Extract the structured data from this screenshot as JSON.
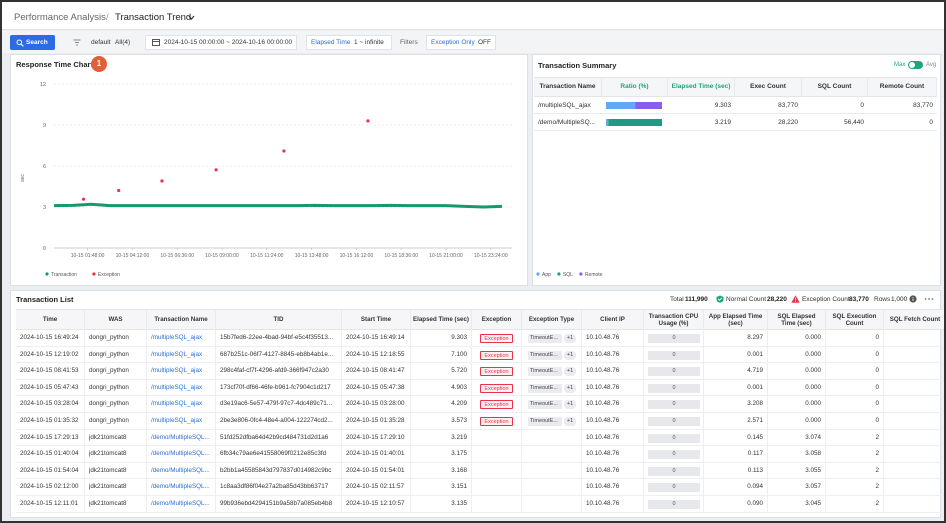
{
  "header": {
    "breadcrumb": "Performance Analysis",
    "separator": "/",
    "title": "Transaction Trend"
  },
  "toolbar": {
    "search": "Search",
    "filter_label": "default",
    "filter_value": "All(4)",
    "date_range": "2024-10-15 00:00:00 ~ 2024-10-16 00:00:00",
    "elapsed_label": "Elapsed Time",
    "elapsed_value": "1 ~ infinite",
    "filters": "Filters",
    "exception_label": "Exception Only",
    "exception_value": "OFF"
  },
  "chart_data": {
    "type": "scatter",
    "title": "Response Time Chart",
    "badge": "1",
    "ylabel": "sec",
    "xlim": [
      0,
      1440
    ],
    "ylim": [
      0,
      12
    ],
    "yticks": [
      0,
      3,
      6,
      9,
      12
    ],
    "xticks": [
      {
        "value": 108,
        "label": "10-15 01:48:00"
      },
      {
        "value": 252,
        "label": "10-15 04:12:00"
      },
      {
        "value": 396,
        "label": "10-15 06:36:00"
      },
      {
        "value": 540,
        "label": "10-15 09:00:00"
      },
      {
        "value": 684,
        "label": "10-15 11:24:00"
      },
      {
        "value": 828,
        "label": "10-15 13:48:00"
      },
      {
        "value": 972,
        "label": "10-15 16:12:00"
      },
      {
        "value": 1116,
        "label": "10-15 18:36:00"
      },
      {
        "value": 1260,
        "label": "10-15 21:00:00"
      },
      {
        "value": 1404,
        "label": "10-15 23:24:00"
      }
    ],
    "grid": true,
    "series": [
      {
        "name": "Transaction",
        "color": "#169a6b",
        "mode": "line",
        "x": [
          0,
          60,
          120,
          180,
          240,
          300,
          360,
          420,
          480,
          540,
          600,
          660,
          720,
          780,
          840,
          900,
          960,
          1020,
          1080,
          1140,
          1200,
          1260,
          1320,
          1380,
          1440
        ],
        "values": [
          3.1,
          3.12,
          3.2,
          3.1,
          3.1,
          3.1,
          3.1,
          3.1,
          3.1,
          3.1,
          3.1,
          3.1,
          3.1,
          3.1,
          3.12,
          3.1,
          3.1,
          3.1,
          3.12,
          3.1,
          3.1,
          3.1,
          3.05,
          3.0,
          3.05
        ]
      },
      {
        "name": "Exception",
        "color": "#e8334a",
        "mode": "markers",
        "x": [
          95,
          208,
          347,
          521,
          739,
          1009
        ],
        "values": [
          3.573,
          4.209,
          4.903,
          5.72,
          7.1,
          9.303
        ]
      }
    ]
  },
  "summary": {
    "title": "Transaction Summary",
    "toggle_max": "Max",
    "toggle_avg": "Avg",
    "columns": [
      "Transaction Name",
      "Ratio (%)",
      "Elapsed Time (sec)",
      "Exec Count",
      "SQL Count",
      "Remote Count"
    ],
    "rows": [
      {
        "name": "/multipleSQL_ajax",
        "ratio": [
          52,
          0,
          48
        ],
        "elapsed": "9.303",
        "exec": "83,770",
        "sql": "0",
        "remote": "83,770"
      },
      {
        "name": "/demo/MultipleSQ...",
        "ratio": [
          4,
          96,
          0
        ],
        "elapsed": "3.219",
        "exec": "28,220",
        "sql": "56,440",
        "remote": "0"
      }
    ],
    "legend": [
      {
        "name": "App",
        "color": "#62a8f2"
      },
      {
        "name": "SQL",
        "color": "#1f9a84"
      },
      {
        "name": "Remote",
        "color": "#8a5cf0"
      }
    ]
  },
  "list": {
    "title": "Transaction List",
    "total_label": "Total",
    "total": "111,990",
    "normal_label": "Normal Count",
    "normal": "28,220",
    "exception_label": "Exception Count",
    "exception": "83,770",
    "rows_label": "Rows",
    "rows_value": "1,000",
    "columns": [
      "Time",
      "WAS",
      "Transaction Name",
      "TID",
      "Start Time",
      "Elapsed Time (sec)",
      "Exception",
      "Exception Type",
      "Client IP",
      "Transaction CPU Usage (%)",
      "App Elapsed Time (sec)",
      "SQL Elapsed Time (sec)",
      "SQL Execution Count",
      "SQL Fetch Count"
    ],
    "rows": [
      {
        "time": "2024-10-15 16:49:24",
        "was": "dongri_python",
        "name": "/multipleSQL_ajax",
        "tid": "15b7fed6-22ee-4bad-94bf-e5c4f35513...",
        "start": "2024-10-15 16:49:14",
        "elapsed": "9.303",
        "exception": "Exception",
        "exception_type": "TimeoutE...",
        "exception_more": "+1",
        "client_ip": "10.10.48.76",
        "cpu": "0",
        "app_elapsed": "8.297",
        "sql_elapsed": "0.000",
        "sql_exec": "0"
      },
      {
        "time": "2024-10-15 12:19:02",
        "was": "dongri_python",
        "name": "/multipleSQL_ajax",
        "tid": "687b251c-06f7-4127-8845-eb8b4ab1e...",
        "start": "2024-10-15 12:18:55",
        "elapsed": "7.100",
        "exception": "Exception",
        "exception_type": "TimeoutE...",
        "exception_more": "+1",
        "client_ip": "10.10.48.76",
        "cpu": "0",
        "app_elapsed": "0.001",
        "sql_elapsed": "0.000",
        "sql_exec": "0"
      },
      {
        "time": "2024-10-15 08:41:53",
        "was": "dongri_python",
        "name": "/multipleSQL_ajax",
        "tid": "298c4faf-cf7f-4296-afd9-366f947c2a30",
        "start": "2024-10-15 08:41:47",
        "elapsed": "5.720",
        "exception": "Exception",
        "exception_type": "TimeoutE...",
        "exception_more": "+1",
        "client_ip": "10.10.48.76",
        "cpu": "0",
        "app_elapsed": "4.719",
        "sql_elapsed": "0.000",
        "sql_exec": "0"
      },
      {
        "time": "2024-10-15 05:47:43",
        "was": "dongri_python",
        "name": "/multipleSQL_ajax",
        "tid": "173cf70f-df66-46fe-b961-fc7904c1d217",
        "start": "2024-10-15 05:47:38",
        "elapsed": "4.903",
        "exception": "Exception",
        "exception_type": "TimeoutE...",
        "exception_more": "+1",
        "client_ip": "10.10.48.76",
        "cpu": "0",
        "app_elapsed": "0.001",
        "sql_elapsed": "0.000",
        "sql_exec": "0"
      },
      {
        "time": "2024-10-15 03:28:04",
        "was": "dongri_python",
        "name": "/multipleSQL_ajax",
        "tid": "d3e19ac6-5e57-479f-97c7-4dc489c71...",
        "start": "2024-10-15 03:28:00",
        "elapsed": "4.209",
        "exception": "Exception",
        "exception_type": "TimeoutE...",
        "exception_more": "+1",
        "client_ip": "10.10.48.76",
        "cpu": "0",
        "app_elapsed": "3.208",
        "sql_elapsed": "0.000",
        "sql_exec": "0"
      },
      {
        "time": "2024-10-15 01:35:32",
        "was": "dongri_python",
        "name": "/multipleSQL_ajax",
        "tid": "2be3e806-0fc4-48e4-a004-122274cd2...",
        "start": "2024-10-15 01:35:28",
        "elapsed": "3.573",
        "exception": "Exception",
        "exception_type": "TimeoutE...",
        "exception_more": "+1",
        "client_ip": "10.10.48.76",
        "cpu": "0",
        "app_elapsed": "2.571",
        "sql_elapsed": "0.000",
        "sql_exec": "0"
      },
      {
        "time": "2024-10-15 17:29:13",
        "was": "jdk21tomcat8",
        "name": "/demo/MultipleSQL...",
        "tid": "51fd252dfba64d42b9cd484731d2d1a6",
        "start": "2024-10-15 17:29:10",
        "elapsed": "3.219",
        "client_ip": "10.10.48.76",
        "cpu": "0",
        "app_elapsed": "0.145",
        "sql_elapsed": "3.074",
        "sql_exec": "2"
      },
      {
        "time": "2024-10-15 01:40:04",
        "was": "jdk21tomcat8",
        "name": "/demo/MultipleSQL...",
        "tid": "6fb34c79ae6e41558069f0212e85c3fd",
        "start": "2024-10-15 01:40:01",
        "elapsed": "3.175",
        "client_ip": "10.10.48.76",
        "cpu": "0",
        "app_elapsed": "0.117",
        "sql_elapsed": "3.058",
        "sql_exec": "2"
      },
      {
        "time": "2024-10-15 01:54:04",
        "was": "jdk21tomcat8",
        "name": "/demo/MultipleSQL...",
        "tid": "b2bb1a45585843d797837d014982c9bc",
        "start": "2024-10-15 01:54:01",
        "elapsed": "3.168",
        "client_ip": "10.10.48.76",
        "cpu": "0",
        "app_elapsed": "0.113",
        "sql_elapsed": "3.055",
        "sql_exec": "2"
      },
      {
        "time": "2024-10-15 02:12:00",
        "was": "jdk21tomcat8",
        "name": "/demo/MultipleSQL...",
        "tid": "1c8aa3df86f04e27a2ba85d43bb63717",
        "start": "2024-10-15 02:11:57",
        "elapsed": "3.151",
        "client_ip": "10.10.48.76",
        "cpu": "0",
        "app_elapsed": "0.094",
        "sql_elapsed": "3.057",
        "sql_exec": "2"
      },
      {
        "time": "2024-10-15 12:11:01",
        "was": "jdk21tomcat8",
        "name": "/demo/MultipleSQL...",
        "tid": "99b936ebd4294151b9a58b7a085eb4b8",
        "start": "2024-10-15 12:10:57",
        "elapsed": "3.135",
        "client_ip": "10.10.48.76",
        "cpu": "0",
        "app_elapsed": "0.090",
        "sql_elapsed": "3.045",
        "sql_exec": "2"
      }
    ]
  }
}
